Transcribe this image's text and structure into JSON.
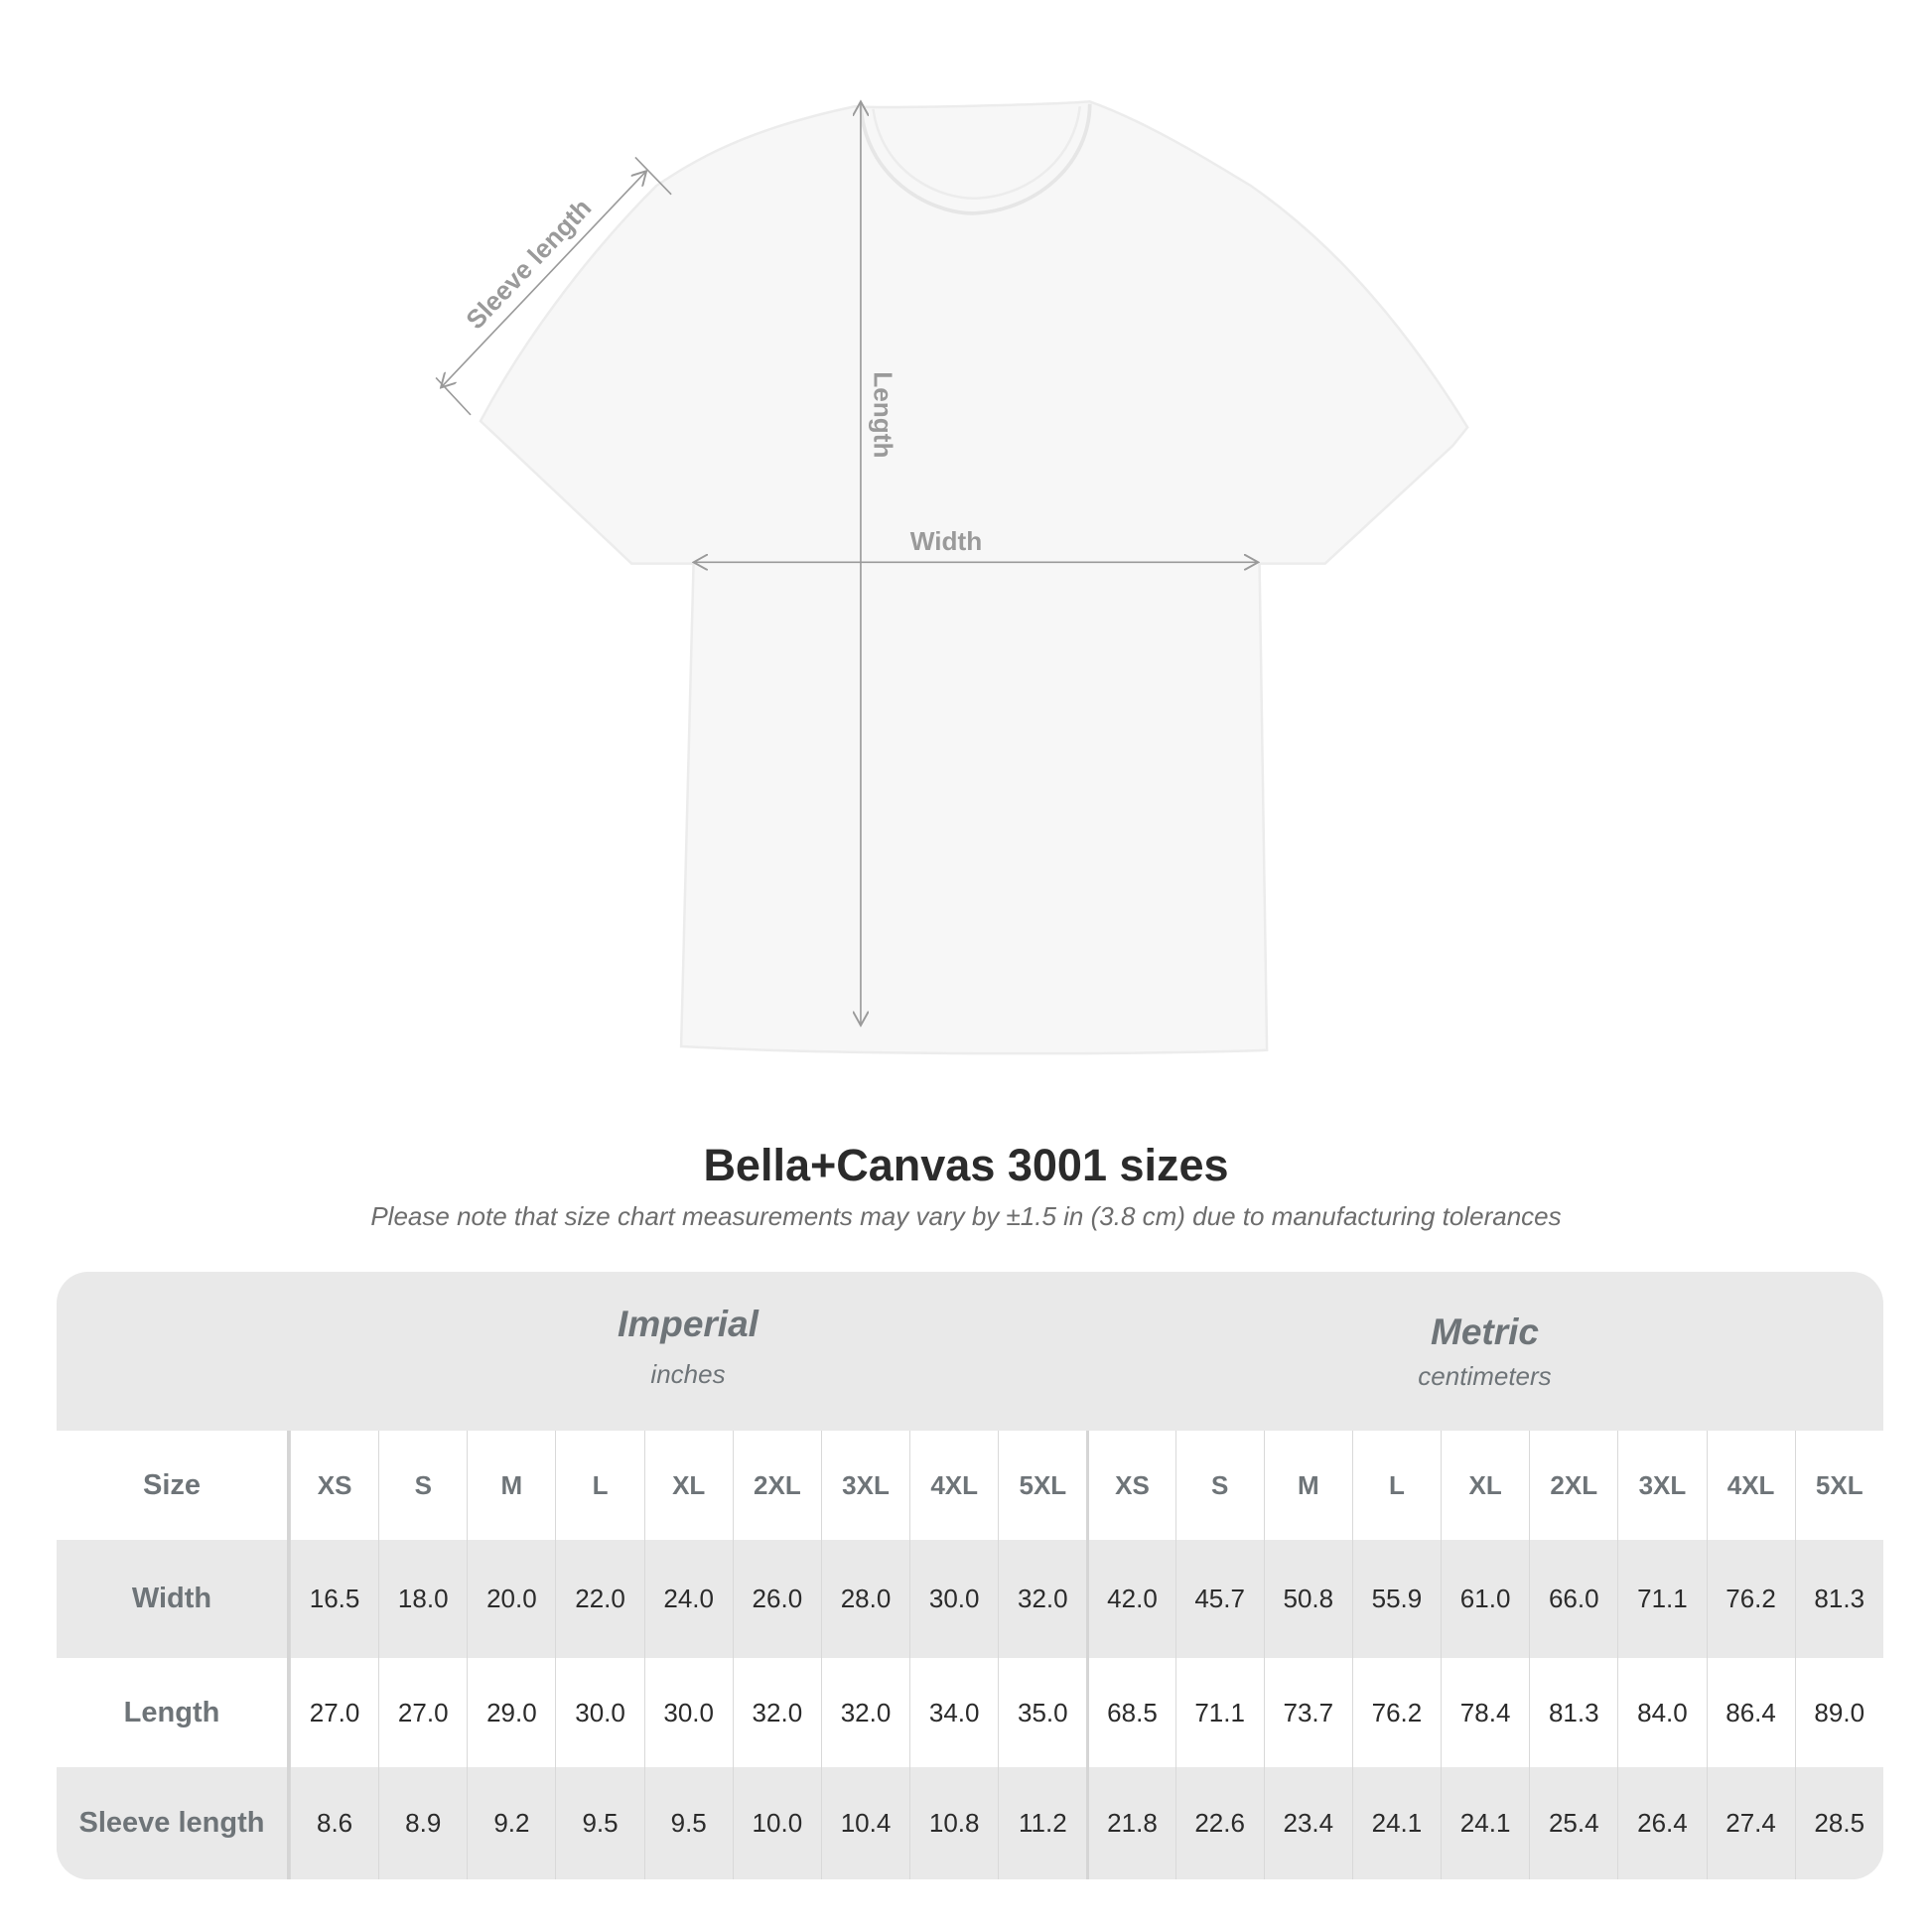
{
  "diagram": {
    "labels": {
      "length": "Length",
      "width": "Width",
      "sleeve": "Sleeve length"
    },
    "colors": {
      "shirt": "#f7f7f7",
      "lines": "#9a9a9a"
    }
  },
  "title": "Bella+Canvas 3001 sizes",
  "subtitle": "Please note that size chart measurements may vary by ±1.5 in (3.8 cm) due to manufacturing tolerances",
  "table": {
    "imperial": {
      "title": "Imperial",
      "unit": "inches"
    },
    "metric": {
      "title": "Metric",
      "unit": "centimeters"
    },
    "size_label": "Size",
    "sizes": [
      "XS",
      "S",
      "M",
      "L",
      "XL",
      "2XL",
      "3XL",
      "4XL",
      "5XL",
      "XS",
      "S",
      "M",
      "L",
      "XL",
      "2XL",
      "3XL",
      "4XL",
      "5XL"
    ],
    "rows": [
      {
        "label": "Width",
        "values": [
          "16.5",
          "18.0",
          "20.0",
          "22.0",
          "24.0",
          "26.0",
          "28.0",
          "30.0",
          "32.0",
          "42.0",
          "45.7",
          "50.8",
          "55.9",
          "61.0",
          "66.0",
          "71.1",
          "76.2",
          "81.3"
        ]
      },
      {
        "label": "Length",
        "values": [
          "27.0",
          "27.0",
          "29.0",
          "30.0",
          "30.0",
          "32.0",
          "32.0",
          "34.0",
          "35.0",
          "68.5",
          "71.1",
          "73.7",
          "76.2",
          "78.4",
          "81.3",
          "84.0",
          "86.4",
          "89.0"
        ]
      },
      {
        "label": "Sleeve length",
        "values": [
          "8.6",
          "8.9",
          "9.2",
          "9.5",
          "9.5",
          "10.0",
          "10.4",
          "10.8",
          "11.2",
          "21.8",
          "22.6",
          "23.4",
          "24.1",
          "24.1",
          "25.4",
          "26.4",
          "27.4",
          "28.5"
        ]
      }
    ]
  }
}
